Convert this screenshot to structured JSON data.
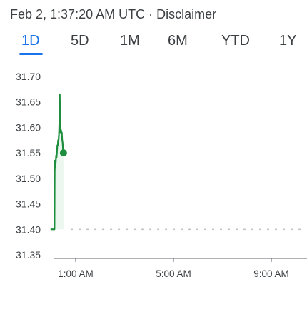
{
  "header": {
    "timestamp": "Feb 2, 1:37:20 AM UTC",
    "separator": "·",
    "disclaimer": "Disclaimer"
  },
  "tabs": [
    {
      "label": "1D",
      "active": true
    },
    {
      "label": "5D",
      "active": false
    },
    {
      "label": "1M",
      "active": false
    },
    {
      "label": "6M",
      "active": false
    },
    {
      "label": "YTD",
      "active": false
    },
    {
      "label": "1Y",
      "active": false
    }
  ],
  "colors": {
    "line": "#1e8e3e",
    "fill": "#e6f4ea",
    "active_tab": "#1a73e8",
    "baseline_dots": "#bdc1c6",
    "axis": "#5f6368"
  },
  "chart_data": {
    "type": "line",
    "title": "",
    "xlabel": "",
    "ylabel": "",
    "y_ticks": [
      31.7,
      31.65,
      31.6,
      31.55,
      31.5,
      31.45,
      31.4,
      31.35
    ],
    "y_tick_labels": [
      "31.70",
      "31.65",
      "31.60",
      "31.55",
      "31.50",
      "31.45",
      "31.40",
      "31.35"
    ],
    "ylim": [
      31.35,
      31.7
    ],
    "x_tick_labels": [
      "1:00 AM",
      "5:00 AM",
      "9:00 AM"
    ],
    "x_ticks_minutes": [
      60,
      300,
      540
    ],
    "xlim_minutes": [
      0,
      600
    ],
    "previous_close": 31.4,
    "series": [
      {
        "values": [
          [
            0,
            31.4
          ],
          [
            6,
            31.4
          ],
          [
            8,
            31.4
          ],
          [
            8.5,
            31.51
          ],
          [
            9,
            31.535
          ],
          [
            10,
            31.52
          ],
          [
            11,
            31.53
          ],
          [
            12,
            31.545
          ],
          [
            13,
            31.54
          ],
          [
            14,
            31.55
          ],
          [
            15,
            31.565
          ],
          [
            16,
            31.565
          ],
          [
            17,
            31.575
          ],
          [
            18,
            31.575
          ],
          [
            19,
            31.585
          ],
          [
            20,
            31.61
          ],
          [
            21,
            31.665
          ],
          [
            22,
            31.61
          ],
          [
            23,
            31.59
          ],
          [
            24,
            31.595
          ],
          [
            25,
            31.59
          ],
          [
            26,
            31.59
          ],
          [
            27,
            31.575
          ],
          [
            28,
            31.57
          ],
          [
            29,
            31.555
          ],
          [
            30,
            31.55
          ]
        ]
      }
    ],
    "grid": false,
    "legend": "none"
  }
}
